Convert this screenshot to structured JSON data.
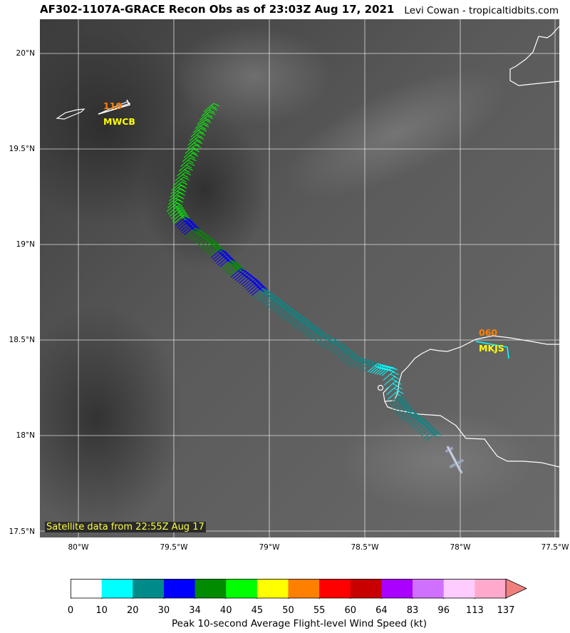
{
  "header": {
    "title": "AF302-1107A-GRACE Recon Obs as of 23:03Z Aug 17, 2021",
    "credit": "Levi Cowan - tropicaltidbits.com"
  },
  "map": {
    "lat_labels": [
      "20°N",
      "19.5°N",
      "19°N",
      "18.5°N",
      "18°N",
      "17.5°N"
    ],
    "lon_labels": [
      "80°W",
      "79.5°W",
      "79°W",
      "78.5°W",
      "78°W",
      "77.5°W"
    ],
    "satellite_note": "Satellite data from 22:55Z Aug 17",
    "stations": [
      {
        "id": "MWCB",
        "value": "110"
      },
      {
        "id": "MKJS",
        "value": "060"
      }
    ]
  },
  "colorbar": {
    "ticks": [
      "0",
      "10",
      "20",
      "30",
      "34",
      "40",
      "45",
      "50",
      "55",
      "60",
      "64",
      "83",
      "96",
      "113",
      "137"
    ],
    "colors": [
      "#ffffff",
      "#00ffff",
      "#008b8b",
      "#0000ff",
      "#008b00",
      "#00ff00",
      "#ffff00",
      "#ff7f00",
      "#ff0000",
      "#c80000",
      "#aa00ff",
      "#d070ff",
      "#ffccff",
      "#ffaacc"
    ],
    "extend_color": "#f08080",
    "label": "Peak 10-second Average Flight-level Wind Speed (kt)"
  }
}
